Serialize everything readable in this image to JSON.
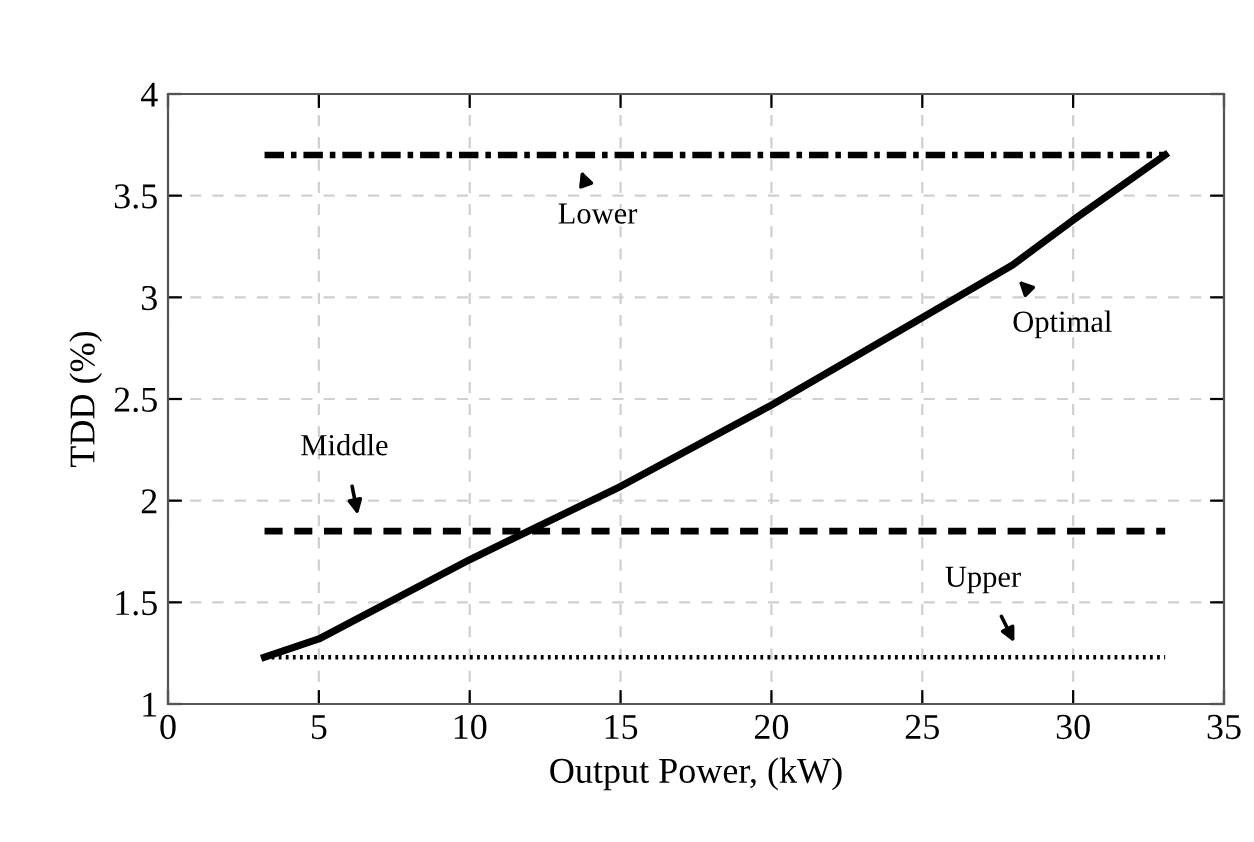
{
  "chart_data": {
    "type": "line",
    "xlabel": "Output Power, (kW)",
    "ylabel": "TDD (%)",
    "xlim": [
      0,
      35
    ],
    "xticks": [
      0,
      5,
      10,
      15,
      20,
      25,
      30,
      35
    ],
    "ylim": [
      1,
      4
    ],
    "yticks": [
      1,
      1.5,
      2,
      2.5,
      3,
      3.5,
      4
    ],
    "grid": true,
    "series": [
      {
        "color": "#000000",
        "line_style": "dashdot",
        "x": [
          3.2,
          33.05
        ],
        "values": [
          3.7,
          3.7
        ]
      },
      {
        "color": "#000000",
        "line_style": "solid",
        "x": [
          3.2,
          5,
          10,
          15,
          20,
          25,
          28,
          30,
          33.05
        ],
        "values": [
          1.23,
          1.32,
          1.71,
          2.07,
          2.47,
          2.9,
          3.16,
          3.38,
          3.7
        ]
      },
      {
        "color": "#000000",
        "line_style": "dashed",
        "x": [
          3.2,
          33.05
        ],
        "values": [
          1.85,
          1.85
        ]
      },
      {
        "color": "#000000",
        "line_style": "dotted",
        "x": [
          3.2,
          33.05
        ],
        "values": [
          1.23,
          1.23
        ]
      }
    ],
    "annotations": [
      {
        "text": "Lower",
        "x": 13.5,
        "y": 3.7
      },
      {
        "text": "Optimal",
        "x": 27.8,
        "y": 3.14
      },
      {
        "text": "Middle",
        "x": 6.4,
        "y": 1.85
      },
      {
        "text": "Upper",
        "x": 28.3,
        "y": 1.23
      }
    ]
  }
}
